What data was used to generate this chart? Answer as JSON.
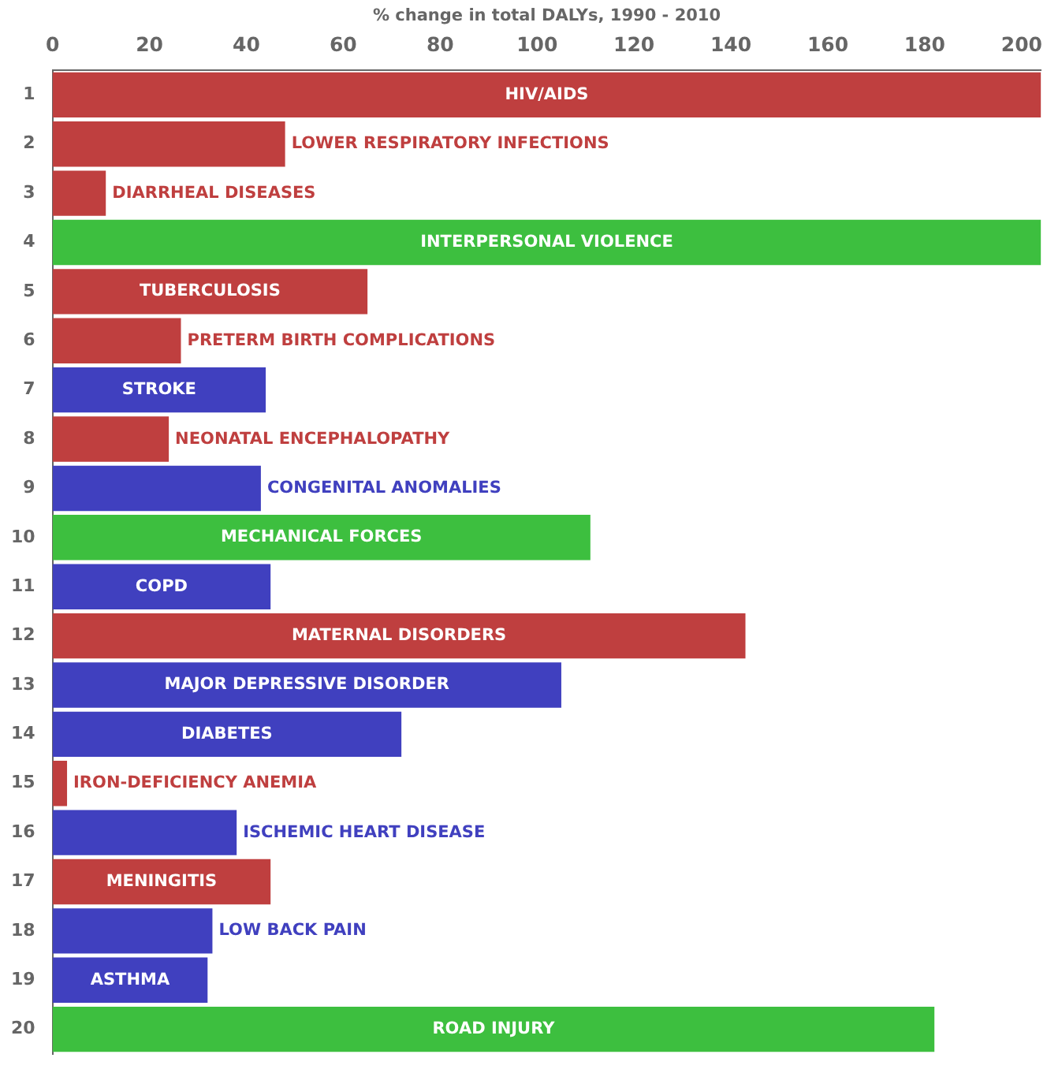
{
  "chart_data": {
    "type": "bar",
    "orientation": "horizontal",
    "xlabel": "% change in total DALYs, 1990 - 2010",
    "categories": [
      "1",
      "2",
      "3",
      "4",
      "5",
      "6",
      "7",
      "8",
      "9",
      "10",
      "11",
      "12",
      "13",
      "14",
      "15",
      "16",
      "17",
      "18",
      "19",
      "20"
    ],
    "values": [
      204,
      48,
      11,
      204,
      65,
      26.5,
      44,
      24,
      43,
      111,
      45,
      143,
      105,
      72,
      3,
      38,
      45,
      33,
      32,
      182
    ],
    "colors": [
      "#bf3f3f",
      "#bf3f3f",
      "#bf3f3f",
      "#3dbf3f",
      "#bf3f3f",
      "#bf3f3f",
      "#4040bf",
      "#bf3f3f",
      "#4040bf",
      "#3dbf3f",
      "#4040bf",
      "#bf3f3f",
      "#4040bf",
      "#4040bf",
      "#bf3f3f",
      "#4040bf",
      "#bf3f3f",
      "#4040bf",
      "#4040bf",
      "#3dbf3f"
    ],
    "value_labels": [
      "HIV/AIDS",
      "LOWER RESPIRATORY INFECTIONS",
      "DIARRHEAL DISEASES",
      "INTERPERSONAL VIOLENCE",
      "TUBERCULOSIS",
      "PRETERM BIRTH COMPLICATIONS",
      "STROKE",
      "NEONATAL ENCEPHALOPATHY",
      "CONGENITAL ANOMALIES",
      "MECHANICAL FORCES",
      "COPD",
      "MATERNAL DISORDERS",
      "MAJOR DEPRESSIVE DISORDER",
      "DIABETES",
      "IRON-DEFICIENCY ANEMIA",
      "ISCHEMIC HEART DISEASE",
      "MENINGITIS",
      "LOW BACK PAIN",
      "ASTHMA",
      "ROAD INJURY"
    ],
    "xlim": [
      0,
      204
    ],
    "xticks": [
      0,
      20,
      40,
      60,
      80,
      100,
      120,
      140,
      160,
      180,
      200
    ],
    "grid": false,
    "legend": false
  }
}
